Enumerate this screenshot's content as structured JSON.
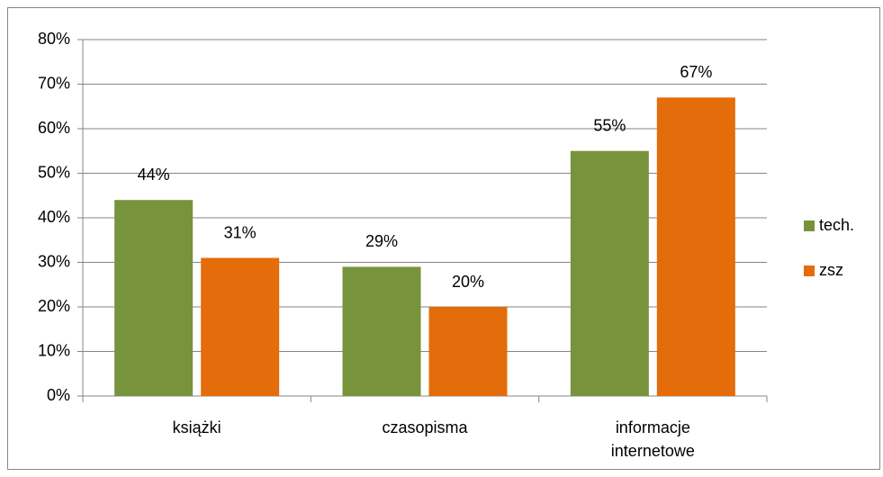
{
  "chart_data": {
    "type": "bar",
    "categories": [
      "książki",
      "czasopisma",
      "informacje internetowe"
    ],
    "series": [
      {
        "name": "tech.",
        "color": "#77933c",
        "values": [
          44,
          29,
          55
        ],
        "value_labels": [
          "44%",
          "29%",
          "55%"
        ]
      },
      {
        "name": "zsz",
        "color": "#e46c0a",
        "values": [
          31,
          20,
          67
        ],
        "value_labels": [
          "31%",
          "20%",
          "67%"
        ]
      }
    ],
    "ylim": [
      0,
      80
    ],
    "yticks": [
      {
        "value": 0,
        "label": "0%"
      },
      {
        "value": 10,
        "label": "10%"
      },
      {
        "value": 20,
        "label": "20%"
      },
      {
        "value": 30,
        "label": "30%"
      },
      {
        "value": 40,
        "label": "40%"
      },
      {
        "value": 50,
        "label": "50%"
      },
      {
        "value": 60,
        "label": "60%"
      },
      {
        "value": 70,
        "label": "70%"
      },
      {
        "value": 80,
        "label": "80%"
      }
    ],
    "grid": true,
    "legend": "right"
  }
}
